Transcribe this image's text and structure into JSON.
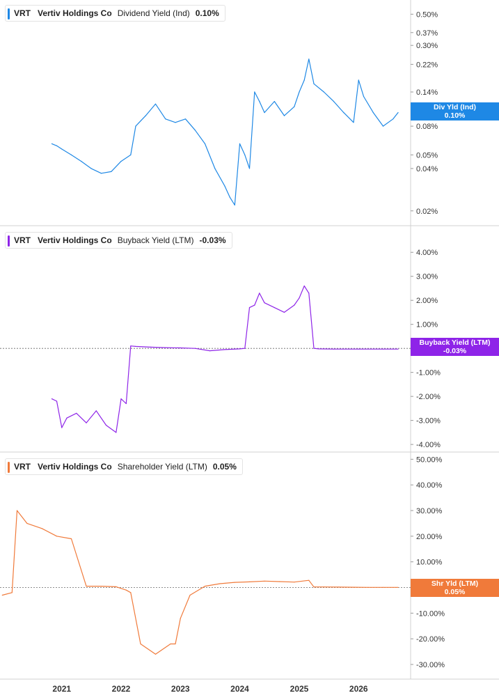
{
  "colors": {
    "div": "#1e88e5",
    "buyback": "#8e24e8",
    "shareholder": "#f07a3a",
    "grid": "#e5e5e5"
  },
  "x_axis": {
    "ticks": [
      "2021",
      "2022",
      "2023",
      "2024",
      "2025",
      "2026"
    ]
  },
  "panels": [
    {
      "ticker": "VRT",
      "company": "Vertiv Holdings Co",
      "metric": "Dividend Yield (Ind)",
      "value": "0.10%",
      "badge_label": "Div Yld (Ind)",
      "badge_value": "0.10%",
      "y_ticks": [
        "0.50%",
        "0.37%",
        "0.30%",
        "0.22%",
        "0.14%",
        "0.1",
        "0.08%",
        "0.05%",
        "0.04%",
        "0.02%"
      ]
    },
    {
      "ticker": "VRT",
      "company": "Vertiv Holdings Co",
      "metric": "Buyback Yield (LTM)",
      "value": "-0.03%",
      "badge_label": "Buyback Yield (LTM)",
      "badge_value": "-0.03%",
      "y_ticks": [
        "4.00%",
        "3.00%",
        "2.00%",
        "1.00%",
        "-1.00%",
        "-2.00%",
        "-3.00%",
        "-4.00%"
      ]
    },
    {
      "ticker": "VRT",
      "company": "Vertiv Holdings Co",
      "metric": "Shareholder Yield (LTM)",
      "value": "0.05%",
      "badge_label": "Shr Yld (LTM)",
      "badge_value": "0.05%",
      "y_ticks": [
        "50.00%",
        "40.00%",
        "30.00%",
        "20.00%",
        "10.00%",
        "0.0",
        "-10.00%",
        "-20.00%",
        "-30.00%"
      ]
    }
  ],
  "chart_data": [
    {
      "type": "line",
      "name": "Dividend Yield (Ind)",
      "y_scale": "log",
      "ylim": [
        0.018,
        0.55
      ],
      "ytick_values": [
        0.5,
        0.37,
        0.3,
        0.22,
        0.14,
        0.1,
        0.08,
        0.05,
        0.04,
        0.02
      ],
      "x": [
        "2020-11",
        "2020-12",
        "2021-01",
        "2021-03",
        "2021-05",
        "2021-07",
        "2021-09",
        "2021-11",
        "2022-01",
        "2022-03",
        "2022-04",
        "2022-06",
        "2022-08",
        "2022-10",
        "2022-12",
        "2023-02",
        "2023-04",
        "2023-06",
        "2023-08",
        "2023-10",
        "2023-11",
        "2023-12",
        "2024-01",
        "2024-02",
        "2024-03",
        "2024-04",
        "2024-05",
        "2024-06",
        "2024-08",
        "2024-10",
        "2024-12",
        "2025-01",
        "2025-02",
        "2025-03",
        "2025-04",
        "2025-06",
        "2025-08",
        "2025-10",
        "2025-12",
        "2026-01",
        "2026-02",
        "2026-04",
        "2026-06",
        "2026-08",
        "2026-09"
      ],
      "y": [
        0.06,
        0.058,
        0.055,
        0.05,
        0.045,
        0.04,
        0.037,
        0.038,
        0.045,
        0.05,
        0.08,
        0.095,
        0.115,
        0.09,
        0.085,
        0.09,
        0.075,
        0.06,
        0.04,
        0.03,
        0.025,
        0.022,
        0.06,
        0.05,
        0.04,
        0.14,
        0.12,
        0.1,
        0.12,
        0.095,
        0.11,
        0.14,
        0.17,
        0.24,
        0.16,
        0.14,
        0.12,
        0.1,
        0.085,
        0.17,
        0.13,
        0.1,
        0.08,
        0.09,
        0.1
      ]
    },
    {
      "type": "line",
      "name": "Buyback Yield (LTM)",
      "ylim": [
        -4.2,
        4.5
      ],
      "ytick_values": [
        4,
        3,
        2,
        1,
        -1,
        -2,
        -3,
        -4
      ],
      "x": [
        "2020-11",
        "2020-12",
        "2021-01",
        "2021-02",
        "2021-04",
        "2021-06",
        "2021-08",
        "2021-10",
        "2021-12",
        "2022-01",
        "2022-02",
        "2022-03",
        "2022-04",
        "2022-07",
        "2022-10",
        "2023-01",
        "2023-04",
        "2023-07",
        "2023-10",
        "2024-01",
        "2024-02",
        "2024-03",
        "2024-04",
        "2024-05",
        "2024-06",
        "2024-08",
        "2024-10",
        "2024-12",
        "2025-01",
        "2025-02",
        "2025-03",
        "2025-04",
        "2025-05",
        "2025-08",
        "2026-01",
        "2026-06",
        "2026-09"
      ],
      "y": [
        -2.1,
        -2.2,
        -3.3,
        -2.9,
        -2.7,
        -3.1,
        -2.6,
        -3.2,
        -3.5,
        -2.1,
        -2.3,
        0.1,
        0.08,
        0.05,
        0.03,
        0.02,
        0.0,
        -0.1,
        -0.05,
        -0.02,
        0.0,
        1.7,
        1.8,
        2.3,
        1.9,
        1.7,
        1.5,
        1.8,
        2.1,
        2.6,
        2.3,
        0.0,
        -0.02,
        -0.03,
        -0.03,
        -0.03,
        -0.03
      ]
    },
    {
      "type": "line",
      "name": "Shareholder Yield (LTM)",
      "ylim": [
        -33,
        52
      ],
      "ytick_values": [
        50,
        40,
        30,
        20,
        10,
        0,
        -10,
        -20,
        -30
      ],
      "x": [
        "2020-01",
        "2020-03",
        "2020-04",
        "2020-06",
        "2020-09",
        "2020-12",
        "2021-03",
        "2021-06",
        "2021-09",
        "2021-12",
        "2022-02",
        "2022-03",
        "2022-05",
        "2022-08",
        "2022-11",
        "2022-12",
        "2023-01",
        "2023-03",
        "2023-06",
        "2023-09",
        "2023-12",
        "2024-03",
        "2024-06",
        "2024-09",
        "2024-12",
        "2025-03",
        "2025-04",
        "2025-06",
        "2025-09",
        "2025-12",
        "2026-03",
        "2026-06",
        "2026-09"
      ],
      "y": [
        -3,
        -2,
        30,
        25,
        23,
        20,
        19,
        0.5,
        0.5,
        0.3,
        -1,
        -2,
        -22,
        -26,
        -22,
        -22,
        -12,
        -3,
        0.5,
        1.5,
        2.0,
        2.2,
        2.5,
        2.3,
        2.1,
        2.8,
        0.2,
        0.2,
        0.15,
        0.1,
        0.05,
        0.05,
        0.05
      ]
    }
  ]
}
